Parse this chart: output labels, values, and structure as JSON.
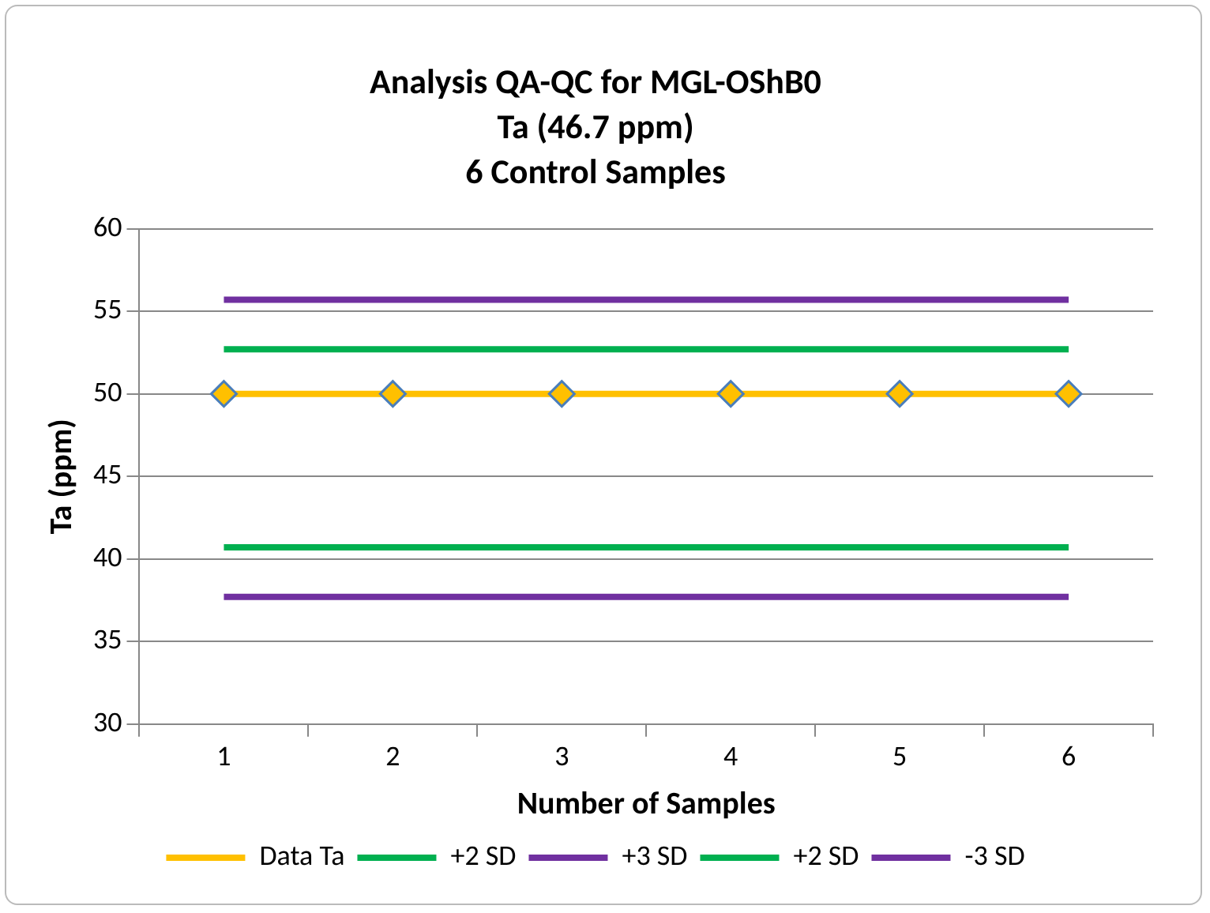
{
  "chart_data": {
    "type": "line",
    "title": "Analysis QA-QC for MGL-OShB0\nTa (46.7 ppm)\n6 Control Samples",
    "xlabel": "Number of Samples",
    "ylabel": "Ta (ppm)",
    "categories": [
      "1",
      "2",
      "3",
      "4",
      "5",
      "6"
    ],
    "ylim": [
      30,
      60
    ],
    "yticks": [
      30,
      35,
      40,
      45,
      50,
      55,
      60
    ],
    "grid": "y",
    "legend": "bottom",
    "line_style": "solid",
    "series": [
      {
        "name": "Data Ta",
        "color": "#ffc000",
        "marker": "diamond",
        "values": [
          50,
          50,
          50,
          50,
          50,
          50
        ]
      },
      {
        "name": "+2 SD",
        "color": "#00b050",
        "marker": "none",
        "values": [
          52.7,
          52.7,
          52.7,
          52.7,
          52.7,
          52.7
        ]
      },
      {
        "name": "+3 SD",
        "color": "#7030a0",
        "marker": "none",
        "values": [
          55.7,
          55.7,
          55.7,
          55.7,
          55.7,
          55.7
        ]
      },
      {
        "name": "+2 SD",
        "color": "#00b050",
        "marker": "none",
        "values": [
          40.7,
          40.7,
          40.7,
          40.7,
          40.7,
          40.7
        ]
      },
      {
        "name": "-3 SD",
        "color": "#7030a0",
        "marker": "none",
        "values": [
          37.7,
          37.7,
          37.7,
          37.7,
          37.7,
          37.7
        ]
      }
    ]
  }
}
